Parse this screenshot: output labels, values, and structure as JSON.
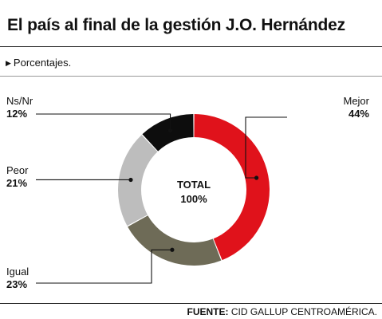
{
  "header": {
    "title": "El país al final de la gestión J.O. Hernández",
    "subtitle": "Porcentajes."
  },
  "footer": {
    "source_label": "FUENTE:",
    "source_text": " CID GALLUP CENTROAMÉRICA."
  },
  "chart_data": {
    "type": "pie",
    "donut": true,
    "center_label": "TOTAL",
    "center_value": "100%",
    "slices": [
      {
        "label": "Mejor",
        "value": 44,
        "display": "44%",
        "color": "#e0121b"
      },
      {
        "label": "Igual",
        "value": 23,
        "display": "23%",
        "color": "#6e6b57"
      },
      {
        "label": "Peor",
        "value": 21,
        "display": "21%",
        "color": "#bdbdbd"
      },
      {
        "label": "Ns/Nr",
        "value": 12,
        "display": "12%",
        "color": "#0d0d0d"
      }
    ]
  }
}
